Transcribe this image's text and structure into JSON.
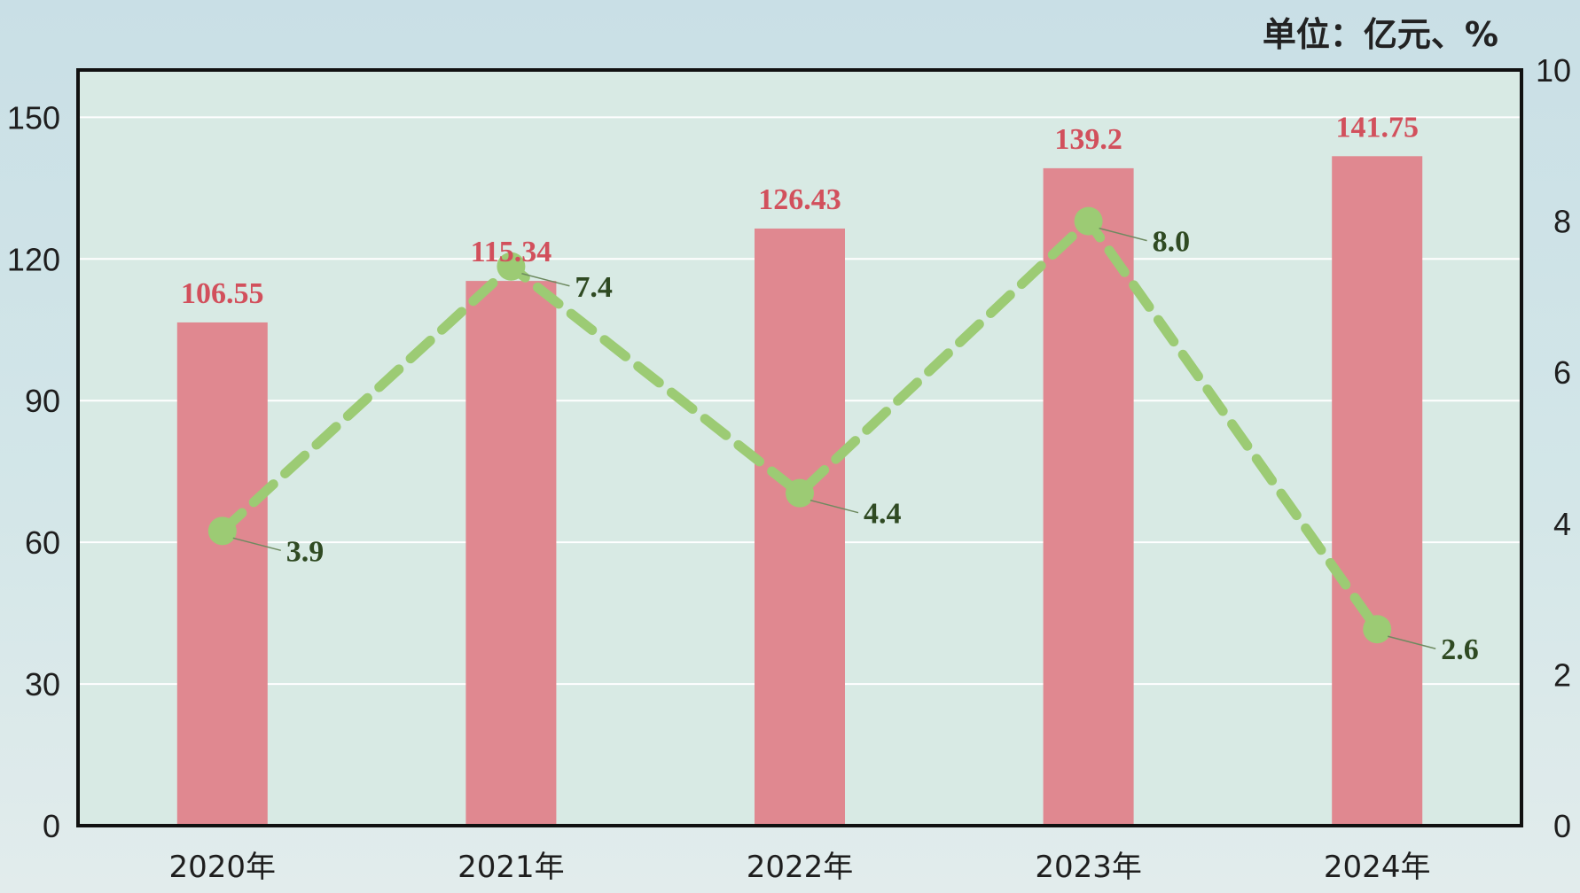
{
  "unit_label": "单位：亿元、%",
  "colors": {
    "plot_bg": "#d8eae4",
    "bar": "#e08890",
    "bar_label": "#d2505c",
    "line": "#9ccb74",
    "marker": "#9ccb74",
    "rate_label": "#2f4a22",
    "gridline": "#ffffff",
    "axis": "#111111"
  },
  "chart_data": {
    "type": "bar",
    "categories": [
      "2020年",
      "2021年",
      "2022年",
      "2023年",
      "2024年"
    ],
    "series": [
      {
        "type": "bar",
        "axis": "left",
        "values": [
          106.55,
          115.34,
          126.43,
          139.2,
          141.75
        ],
        "labels": [
          "106.55",
          "115.34",
          "126.43",
          "139.2",
          "141.75"
        ]
      },
      {
        "type": "line",
        "style": "dashed",
        "axis": "right",
        "values": [
          3.9,
          7.4,
          4.4,
          8.0,
          2.6
        ],
        "labels": [
          "3.9",
          "7.4",
          "4.4",
          "8.0",
          "2.6"
        ]
      }
    ],
    "left_axis": {
      "ylim": [
        0,
        160
      ],
      "ticks": [
        "0",
        "30",
        "60",
        "90",
        "120",
        "150"
      ]
    },
    "right_axis": {
      "ylim": [
        0,
        10
      ],
      "ticks": [
        "0",
        "2",
        "4",
        "6",
        "8",
        "10"
      ]
    },
    "grid": true,
    "legend": "none"
  }
}
